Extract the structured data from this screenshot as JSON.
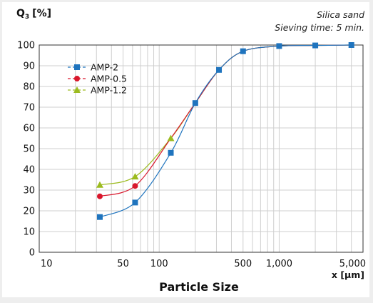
{
  "chart_data": {
    "type": "line",
    "title": "",
    "ylabel": {
      "symbol": "Q",
      "subscript": "3",
      "unit": "[%]"
    },
    "xlabel": "Particle Size",
    "x_unit": "x [µm]",
    "annotations": [
      "Silica sand",
      "Sieving time: 5 min."
    ],
    "x_scale": "log",
    "xlim": [
      10,
      5000
    ],
    "ylim": [
      0,
      100
    ],
    "x_ticks": [
      {
        "value": 10,
        "label": "10"
      },
      {
        "value": 50,
        "label": "50"
      },
      {
        "value": 100,
        "label": "100"
      },
      {
        "value": 500,
        "label": "500"
      },
      {
        "value": 1000,
        "label": "1,000"
      },
      {
        "value": 5000,
        "label": "5,000"
      }
    ],
    "y_ticks": [
      {
        "value": 0,
        "label": "0"
      },
      {
        "value": 10,
        "label": "10"
      },
      {
        "value": 20,
        "label": "20"
      },
      {
        "value": 30,
        "label": "30"
      },
      {
        "value": 40,
        "label": "40"
      },
      {
        "value": 50,
        "label": "50"
      },
      {
        "value": 60,
        "label": "60"
      },
      {
        "value": 70,
        "label": "70"
      },
      {
        "value": 80,
        "label": "80"
      },
      {
        "value": 90,
        "label": "90"
      },
      {
        "value": 100,
        "label": "100"
      }
    ],
    "grid": true,
    "legend_position": "top-left",
    "series": [
      {
        "name": "AMP-2",
        "color": "#1f74be",
        "marker": "square",
        "points": [
          [
            32,
            17
          ],
          [
            63,
            24
          ],
          [
            125,
            48
          ],
          [
            200,
            72
          ],
          [
            315,
            88
          ],
          [
            500,
            97
          ],
          [
            1000,
            99.5
          ],
          [
            2000,
            99.8
          ],
          [
            4000,
            100
          ]
        ]
      },
      {
        "name": "AMP-0.5",
        "color": "#d9172c",
        "marker": "circle",
        "points": [
          [
            32,
            27
          ],
          [
            63,
            32
          ]
        ]
      },
      {
        "name": "AMP-1.2",
        "color": "#9cbb1f",
        "marker": "triangle",
        "points": [
          [
            32,
            32.5
          ],
          [
            63,
            36.5
          ],
          [
            125,
            55
          ]
        ]
      }
    ],
    "merged_curve": [
      [
        125,
        55
      ],
      [
        200,
        72
      ],
      [
        315,
        88
      ],
      [
        500,
        97
      ],
      [
        1000,
        99.5
      ],
      [
        2000,
        99.8
      ],
      [
        4000,
        100
      ]
    ]
  }
}
